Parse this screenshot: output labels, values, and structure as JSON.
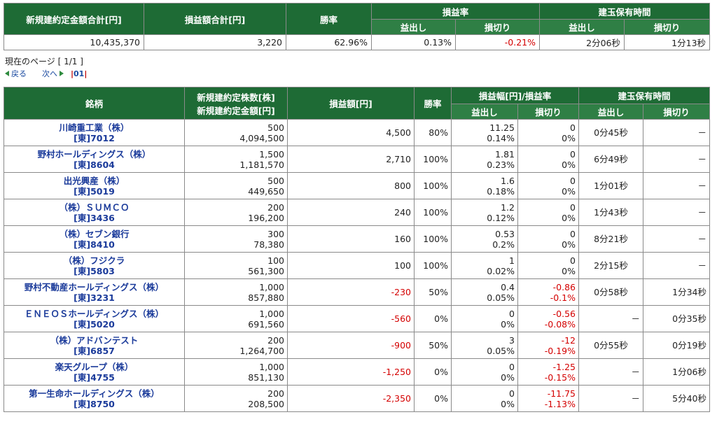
{
  "summary": {
    "headers": {
      "total_amount": "新規建約定金額合計[円]",
      "total_pl": "損益額合計[円]",
      "win_rate": "勝率",
      "pl_rate": "損益率",
      "holding_time": "建玉保有時間",
      "profit": "益出し",
      "loss": "損切り"
    },
    "values": {
      "total_amount": "10,435,370",
      "total_pl": "3,220",
      "win_rate": "62.96%",
      "pl_rate_profit": "0.13%",
      "pl_rate_loss": "-0.21%",
      "hold_profit": "2分06秒",
      "hold_loss": "1分13秒"
    }
  },
  "pager": {
    "current_page": "現在のページ [ 1/1 ]",
    "prev": "戻る",
    "next": "次へ",
    "bar": "|",
    "page_link": "01"
  },
  "table": {
    "headers": {
      "name": "銘柄",
      "qty": "新規建約定株数[株]",
      "amount": "新規建約定金額[円]",
      "pl": "損益額[円]",
      "win_rate": "勝率",
      "pl_range": "損益幅[円]/損益率",
      "holding_time": "建玉保有時間",
      "profit": "益出し",
      "loss": "損切り"
    },
    "rows": [
      {
        "name": "川崎重工業（株）",
        "code": "[東]7012",
        "qty": "500",
        "amount": "4,094,500",
        "pl": "4,500",
        "win": "80%",
        "pw": "11.25",
        "pr": "0.14%",
        "lw": "0",
        "lr": "0%",
        "hp": "0分45秒",
        "hl": "－",
        "neg_pl": false,
        "neg_loss": false
      },
      {
        "name": "野村ホールディングス（株）",
        "code": "[東]8604",
        "qty": "1,500",
        "amount": "1,181,570",
        "pl": "2,710",
        "win": "100%",
        "pw": "1.81",
        "pr": "0.23%",
        "lw": "0",
        "lr": "0%",
        "hp": "6分49秒",
        "hl": "－",
        "neg_pl": false,
        "neg_loss": false
      },
      {
        "name": "出光興産（株）",
        "code": "[東]5019",
        "qty": "500",
        "amount": "449,650",
        "pl": "800",
        "win": "100%",
        "pw": "1.6",
        "pr": "0.18%",
        "lw": "0",
        "lr": "0%",
        "hp": "1分01秒",
        "hl": "－",
        "neg_pl": false,
        "neg_loss": false
      },
      {
        "name": "（株）ＳＵＭＣＯ",
        "code": "[東]3436",
        "qty": "200",
        "amount": "196,200",
        "pl": "240",
        "win": "100%",
        "pw": "1.2",
        "pr": "0.12%",
        "lw": "0",
        "lr": "0%",
        "hp": "1分43秒",
        "hl": "－",
        "neg_pl": false,
        "neg_loss": false
      },
      {
        "name": "（株）セブン銀行",
        "code": "[東]8410",
        "qty": "300",
        "amount": "78,380",
        "pl": "160",
        "win": "100%",
        "pw": "0.53",
        "pr": "0.2%",
        "lw": "0",
        "lr": "0%",
        "hp": "8分21秒",
        "hl": "－",
        "neg_pl": false,
        "neg_loss": false
      },
      {
        "name": "（株）フジクラ",
        "code": "[東]5803",
        "qty": "100",
        "amount": "561,300",
        "pl": "100",
        "win": "100%",
        "pw": "1",
        "pr": "0.02%",
        "lw": "0",
        "lr": "0%",
        "hp": "2分15秒",
        "hl": "－",
        "neg_pl": false,
        "neg_loss": false
      },
      {
        "name": "野村不動産ホールディングス（株）",
        "code": "[東]3231",
        "qty": "1,000",
        "amount": "857,880",
        "pl": "-230",
        "win": "50%",
        "pw": "0.4",
        "pr": "0.05%",
        "lw": "-0.86",
        "lr": "-0.1%",
        "hp": "0分58秒",
        "hl": "1分34秒",
        "neg_pl": true,
        "neg_loss": true
      },
      {
        "name": "ＥＮＥＯＳホールディングス（株）",
        "code": "[東]5020",
        "qty": "1,000",
        "amount": "691,560",
        "pl": "-560",
        "win": "0%",
        "pw": "0",
        "pr": "0%",
        "lw": "-0.56",
        "lr": "-0.08%",
        "hp": "－",
        "hl": "0分35秒",
        "neg_pl": true,
        "neg_loss": true
      },
      {
        "name": "（株）アドバンテスト",
        "code": "[東]6857",
        "qty": "200",
        "amount": "1,264,700",
        "pl": "-900",
        "win": "50%",
        "pw": "3",
        "pr": "0.05%",
        "lw": "-12",
        "lr": "-0.19%",
        "hp": "0分55秒",
        "hl": "0分19秒",
        "neg_pl": true,
        "neg_loss": true
      },
      {
        "name": "楽天グループ（株）",
        "code": "[東]4755",
        "qty": "1,000",
        "amount": "851,130",
        "pl": "-1,250",
        "win": "0%",
        "pw": "0",
        "pr": "0%",
        "lw": "-1.25",
        "lr": "-0.15%",
        "hp": "－",
        "hl": "1分06秒",
        "neg_pl": true,
        "neg_loss": true
      },
      {
        "name": "第一生命ホールディングス（株）",
        "code": "[東]8750",
        "qty": "200",
        "amount": "208,500",
        "pl": "-2,350",
        "win": "0%",
        "pw": "0",
        "pr": "0%",
        "lw": "-11.75",
        "lr": "-1.13%",
        "hp": "－",
        "hl": "5分40秒",
        "neg_pl": true,
        "neg_loss": true
      }
    ]
  },
  "colors": {
    "header_green": "#1e6b35",
    "negative_red": "#d40000",
    "link_blue": "#1a3a9a"
  }
}
